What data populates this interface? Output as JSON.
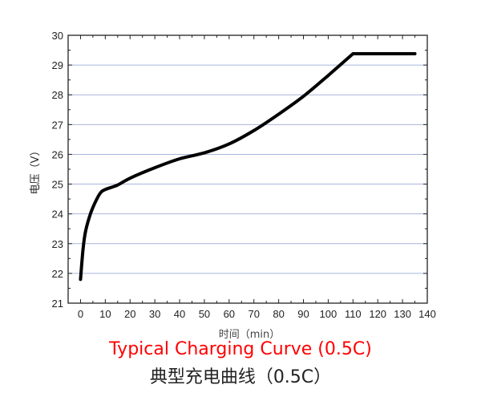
{
  "chart_data": {
    "type": "line",
    "title": "典型充电曲线（0.5C）",
    "subtitle": "Typical Charging Curve (0.5C)",
    "xlabel": "时间（min）",
    "ylabel": "电压（V）",
    "xlim": [
      -5,
      140
    ],
    "ylim": [
      21,
      30
    ],
    "xticks": [
      0,
      10,
      20,
      30,
      40,
      50,
      60,
      70,
      80,
      90,
      100,
      110,
      120,
      130,
      140
    ],
    "yticks": [
      21,
      22,
      23,
      24,
      25,
      26,
      27,
      28,
      29,
      30
    ],
    "grid": "horizontal",
    "colors": {
      "line": "#000000",
      "grid": "#a9b6dc",
      "subtitle": "#ff0000"
    },
    "series": [
      {
        "x": [
          0,
          1,
          2,
          4,
          6,
          8,
          10,
          15,
          20,
          30,
          40,
          50,
          60,
          70,
          80,
          90,
          100,
          110,
          120,
          135
        ],
        "y": [
          21.8,
          22.8,
          23.4,
          24.0,
          24.4,
          24.7,
          24.82,
          24.97,
          25.2,
          25.55,
          25.85,
          26.05,
          26.35,
          26.8,
          27.35,
          27.95,
          28.65,
          29.38,
          29.38,
          29.38
        ]
      }
    ]
  }
}
